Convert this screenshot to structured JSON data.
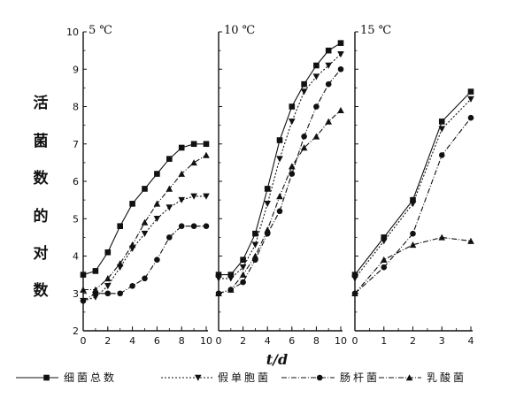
{
  "chart_data": [
    {
      "type": "line",
      "title": "5 ℃",
      "x": [
        0,
        1,
        2,
        3,
        4,
        5,
        6,
        7,
        8,
        9,
        10
      ],
      "ylim": [
        2,
        10
      ],
      "xlim": [
        0,
        10
      ],
      "yticks": [
        2,
        3,
        4,
        5,
        6,
        7,
        8,
        9,
        10
      ],
      "xticks": [
        0,
        2,
        4,
        6,
        8,
        10
      ],
      "series": [
        {
          "name": "细菌总数",
          "values": [
            3.5,
            3.6,
            4.1,
            4.8,
            5.4,
            5.8,
            6.2,
            6.6,
            6.9,
            7.0,
            7.0
          ]
        },
        {
          "name": "假单胞菌",
          "values": [
            2.8,
            2.9,
            3.2,
            3.7,
            4.2,
            4.6,
            5.0,
            5.3,
            5.5,
            5.6,
            5.6
          ]
        },
        {
          "name": "肠杆菌",
          "values": [
            2.8,
            3.0,
            3.0,
            3.0,
            3.2,
            3.4,
            3.9,
            4.5,
            4.8,
            4.8,
            4.8
          ]
        },
        {
          "name": "乳酸菌",
          "values": [
            3.1,
            3.1,
            3.4,
            3.8,
            4.3,
            4.9,
            5.4,
            5.8,
            6.2,
            6.5,
            6.7
          ]
        }
      ]
    },
    {
      "type": "line",
      "title": "10 ℃",
      "x": [
        0,
        1,
        2,
        3,
        4,
        5,
        6,
        7,
        8,
        9,
        10
      ],
      "ylim": [
        2,
        10
      ],
      "xlim": [
        0,
        10
      ],
      "xticks": [
        0,
        2,
        4,
        6,
        8,
        10
      ],
      "series": [
        {
          "name": "细菌总数",
          "values": [
            3.5,
            3.5,
            3.9,
            4.6,
            5.8,
            7.1,
            8.0,
            8.6,
            9.1,
            9.5,
            9.7
          ]
        },
        {
          "name": "假单胞菌",
          "values": [
            3.4,
            3.4,
            3.7,
            4.3,
            5.4,
            6.6,
            7.6,
            8.4,
            8.8,
            9.1,
            9.4
          ]
        },
        {
          "name": "肠杆菌",
          "values": [
            3.0,
            3.1,
            3.3,
            3.9,
            4.6,
            5.2,
            6.2,
            7.2,
            8.0,
            8.6,
            9.0
          ]
        },
        {
          "name": "乳酸菌",
          "values": [
            3.0,
            3.1,
            3.5,
            4.0,
            4.7,
            5.6,
            6.4,
            6.9,
            7.2,
            7.6,
            7.9
          ]
        }
      ]
    },
    {
      "type": "line",
      "title": "15 ℃",
      "x": [
        0,
        1,
        2,
        3,
        4
      ],
      "ylim": [
        2,
        10
      ],
      "xlim": [
        0,
        4
      ],
      "xticks": [
        0,
        1,
        2,
        3,
        4
      ],
      "series": [
        {
          "name": "细菌总数",
          "values": [
            3.5,
            4.5,
            5.5,
            7.6,
            8.4
          ]
        },
        {
          "name": "假单胞菌",
          "values": [
            3.4,
            4.4,
            5.4,
            7.4,
            8.2
          ]
        },
        {
          "name": "肠杆菌",
          "values": [
            3.0,
            3.7,
            4.6,
            6.7,
            7.7
          ]
        },
        {
          "name": "乳酸菌",
          "values": [
            3.0,
            3.9,
            4.3,
            4.5,
            4.4
          ]
        }
      ]
    }
  ],
  "ylabel": "活菌数的对数",
  "xlabel": "t/d",
  "legend": {
    "placement": "bottom",
    "items": [
      {
        "name": "细菌总数",
        "marker": "square",
        "line": "solid"
      },
      {
        "name": "假单胞菌",
        "marker": "triangle-down",
        "line": "dotted"
      },
      {
        "name": "肠杆菌",
        "marker": "circle",
        "line": "dashdot"
      },
      {
        "name": "乳酸菌",
        "marker": "triangle-up",
        "line": "dashdot"
      }
    ]
  },
  "colors": {
    "ink": "#111111",
    "background": "#ffffff"
  }
}
